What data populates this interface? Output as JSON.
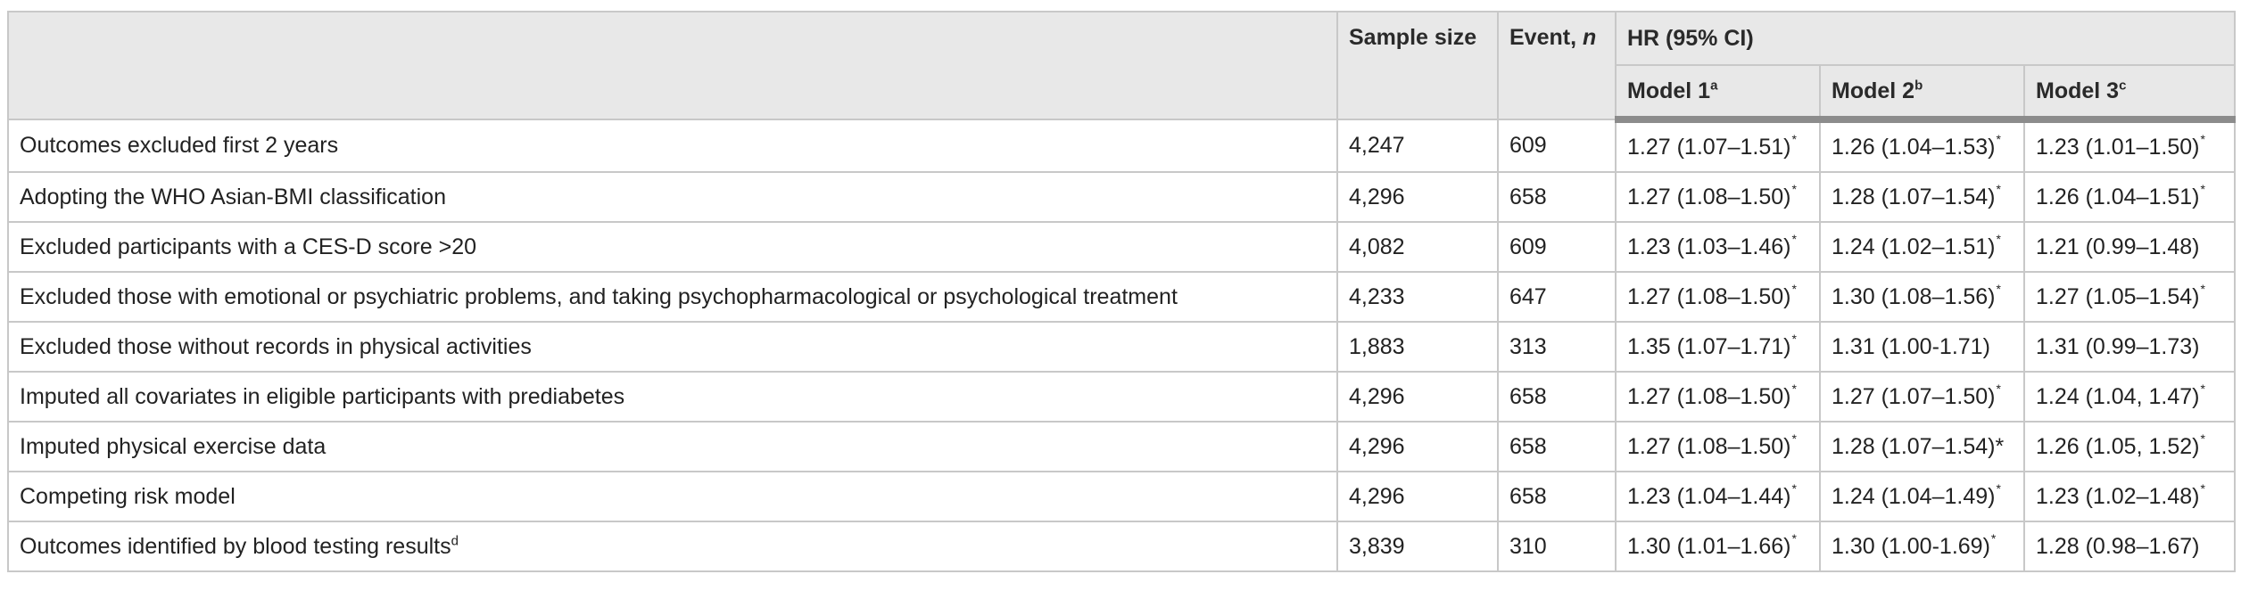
{
  "header": {
    "sample_size": "Sample size",
    "event_prefix": "Event, ",
    "event_n": "n",
    "hr": "HR (95% CI)",
    "model1": "Model 1",
    "model1_sup": "a",
    "model2": "Model 2",
    "model2_sup": "b",
    "model3": "Model 3",
    "model3_sup": "c"
  },
  "rows": [
    {
      "label": "Outcomes excluded first 2 years",
      "label_sup": "",
      "n": "4,247",
      "event": "609",
      "m1": "1.27 (1.07–1.51)",
      "m1_sig": "*",
      "m2": "1.26 (1.04–1.53)",
      "m2_sig": "*",
      "m3": "1.23 (1.01–1.50)",
      "m3_sig": "*"
    },
    {
      "label": "Adopting the WHO Asian-BMI classification",
      "label_sup": "",
      "n": "4,296",
      "event": "658",
      "m1": "1.27 (1.08–1.50)",
      "m1_sig": "*",
      "m2": "1.28 (1.07–1.54)",
      "m2_sig": "*",
      "m3": "1.26 (1.04–1.51)",
      "m3_sig": "*"
    },
    {
      "label": "Excluded participants with a CES-D score >20",
      "label_sup": "",
      "n": "4,082",
      "event": "609",
      "m1": "1.23 (1.03–1.46)",
      "m1_sig": "*",
      "m2": "1.24 (1.02–1.51)",
      "m2_sig": "*",
      "m3": "1.21 (0.99–1.48)",
      "m3_sig": ""
    },
    {
      "label": "Excluded those with emotional or psychiatric problems, and taking psychopharmacological or psychological treatment",
      "label_sup": "",
      "n": "4,233",
      "event": "647",
      "m1": "1.27 (1.08–1.50)",
      "m1_sig": "*",
      "m2": "1.30 (1.08–1.56)",
      "m2_sig": "*",
      "m3": "1.27 (1.05–1.54)",
      "m3_sig": "*"
    },
    {
      "label": "Excluded those without records in physical activities",
      "label_sup": "",
      "n": "1,883",
      "event": "313",
      "m1": "1.35 (1.07–1.71)",
      "m1_sig": "*",
      "m2": "1.31 (1.00-1.71)",
      "m2_sig": "",
      "m3": "1.31 (0.99–1.73)",
      "m3_sig": ""
    },
    {
      "label": "Imputed all covariates in eligible participants with prediabetes",
      "label_sup": "",
      "n": "4,296",
      "event": "658",
      "m1": "1.27 (1.08–1.50)",
      "m1_sig": "*",
      "m2": "1.27 (1.07–1.50)",
      "m2_sig": "*",
      "m3": "1.24 (1.04, 1.47)",
      "m3_sig": "*"
    },
    {
      "label": "Imputed physical exercise data",
      "label_sup": "",
      "n": "4,296",
      "event": "658",
      "m1": "1.27 (1.08–1.50)",
      "m1_sig": "*",
      "m2": "1.28 (1.07–1.54)*",
      "m2_sig": "",
      "m3": "1.26 (1.05, 1.52)",
      "m3_sig": "*"
    },
    {
      "label": "Competing risk model",
      "label_sup": "",
      "n": "4,296",
      "event": "658",
      "m1": "1.23 (1.04–1.44)",
      "m1_sig": "*",
      "m2": "1.24 (1.04–1.49)",
      "m2_sig": "*",
      "m3": "1.23 (1.02–1.48)",
      "m3_sig": "*"
    },
    {
      "label": "Outcomes identified by blood testing results",
      "label_sup": "d",
      "n": "3,839",
      "event": "310",
      "m1": "1.30 (1.01–1.66)",
      "m1_sig": "*",
      "m2": "1.30 (1.00-1.69)",
      "m2_sig": "*",
      "m3": "1.28 (0.98–1.67)",
      "m3_sig": ""
    }
  ]
}
